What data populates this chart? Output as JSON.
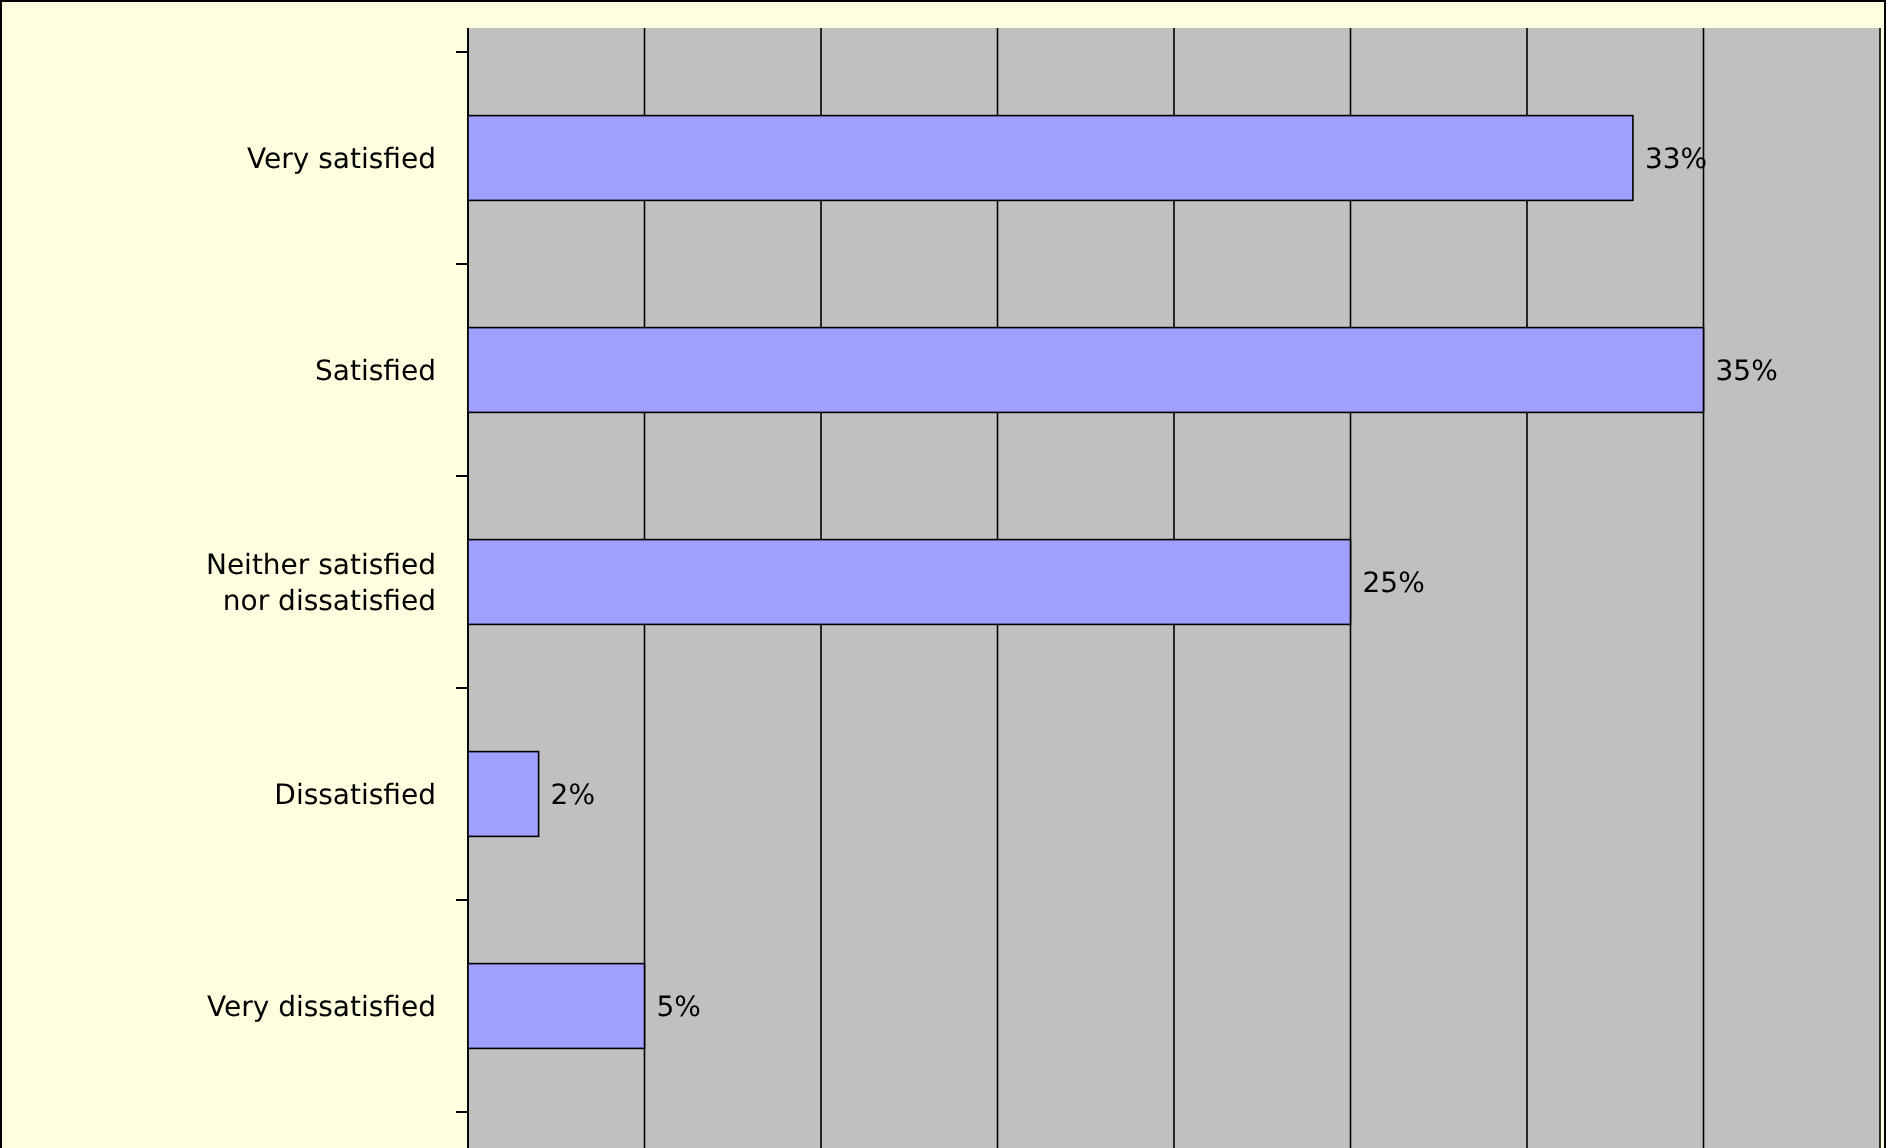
{
  "chart_data": {
    "type": "bar",
    "orientation": "horizontal",
    "categories": [
      "Very satisfied",
      "Satisfied",
      "Neither satisfied\nnor dissatisfied",
      "Dissatisfied",
      "Very dissatisfied"
    ],
    "values": [
      33,
      35,
      25,
      2,
      5
    ],
    "value_labels": [
      "33%",
      "35%",
      "25%",
      "2%",
      "5%"
    ],
    "color": "#a0a0ff",
    "xlim": [
      0,
      40
    ],
    "xticks": [
      {
        "value": 0,
        "label": null
      },
      {
        "value": 5,
        "label": null
      },
      {
        "value": 10,
        "label": null
      },
      {
        "value": 15,
        "label": null
      },
      {
        "value": 20,
        "label": null
      },
      {
        "value": 25,
        "label": null
      },
      {
        "value": 30,
        "label": null
      },
      {
        "value": 35,
        "label": null
      },
      {
        "value": 40,
        "label": null
      }
    ],
    "grid": "x",
    "tick_labels": "y"
  }
}
